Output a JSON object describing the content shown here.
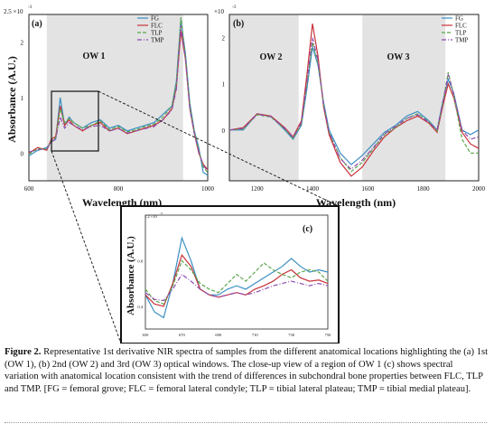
{
  "figure": {
    "panel_a": {
      "label": "(a)",
      "window_label": "OW 1",
      "y_exponent": "2.5 ×10",
      "y_exponent_power": "-3",
      "y_ticks": [
        "2",
        "1",
        "0"
      ],
      "x_ticks": [
        "600",
        "800",
        "1000"
      ],
      "x_label": "Wavelength (nm)",
      "y_label": "Absorbance (A.U.)"
    },
    "panel_b": {
      "label": "(b)",
      "window_labels": [
        "OW 2",
        "OW 3"
      ],
      "y_exponent": "×10",
      "y_exponent_power": "-3",
      "y_ticks": [
        "2",
        "1",
        "0"
      ],
      "x_ticks": [
        "1200",
        "1400",
        "1600",
        "1800",
        "2000"
      ],
      "x_label": "Wavelength (nm)"
    },
    "panel_c": {
      "label": "(c)",
      "y_exponent": "1.2 ×10",
      "y_exponent_power": "-3",
      "y_ticks": [
        "0.8",
        "0.4"
      ],
      "x_ticks": [
        "650",
        "670",
        "690",
        "710",
        "730",
        "750"
      ],
      "y_label": "Absorbance (A.U.)"
    },
    "legend": [
      {
        "name": "FG",
        "color": "#3b8fc4",
        "dash": "solid"
      },
      {
        "name": "FLC",
        "color": "#c8313a",
        "dash": "solid"
      },
      {
        "name": "TLP",
        "color": "#5aa54a",
        "dash": "dashed"
      },
      {
        "name": "TMP",
        "color": "#8e4bb0",
        "dash": "dashdot"
      }
    ]
  },
  "caption": {
    "fig_label": "Figure 2.",
    "text": "Representative 1st derivative NIR spectra of samples from the different anatomical locations highlighting the (a) 1st (OW 1), (b) 2nd (OW 2) and 3rd (OW 3) optical windows. The close-up view of a region of OW 1 (c) shows spectral variation with anatomical location consistent with the trend of differences in subchondral bone properties between FLC, TLP and TMP. [FG = femoral grove; FLC = femoral lateral condyle; TLP = tibial lateral plateau; TMP = tibial medial plateau]."
  },
  "chart_data": [
    {
      "type": "line",
      "panel": "(a)",
      "xlabel": "Wavelength (nm)",
      "ylabel": "Absorbance (A.U.)",
      "xlim": [
        600,
        1000
      ],
      "ylim": [
        -0.5,
        2.5
      ],
      "y_scale_factor": "1e-3",
      "shaded_windows": [
        {
          "label": "OW 1",
          "from": 640,
          "to": 945
        }
      ],
      "series": [
        {
          "name": "FG",
          "x": [
            600,
            620,
            640,
            650,
            660,
            670,
            680,
            690,
            700,
            720,
            740,
            760,
            780,
            800,
            820,
            840,
            860,
            880,
            900,
            920,
            930,
            940,
            950,
            960,
            970,
            980,
            990,
            1000
          ],
          "y": [
            -0.05,
            0.05,
            0.1,
            0.2,
            0.25,
            1.0,
            0.5,
            0.65,
            0.55,
            0.45,
            0.55,
            0.6,
            0.45,
            0.5,
            0.4,
            0.45,
            0.5,
            0.55,
            0.7,
            0.85,
            1.3,
            2.4,
            1.8,
            0.9,
            0.4,
            0.1,
            -0.35,
            -0.4
          ]
        },
        {
          "name": "FLC",
          "x": [
            600,
            620,
            640,
            650,
            660,
            670,
            680,
            690,
            700,
            720,
            740,
            760,
            780,
            800,
            820,
            840,
            860,
            880,
            900,
            920,
            930,
            940,
            950,
            960,
            970,
            980,
            990,
            1000
          ],
          "y": [
            0.0,
            0.1,
            0.05,
            0.25,
            0.3,
            0.85,
            0.5,
            0.6,
            0.5,
            0.4,
            0.5,
            0.55,
            0.4,
            0.45,
            0.35,
            0.4,
            0.45,
            0.5,
            0.6,
            0.8,
            1.2,
            2.2,
            1.7,
            0.8,
            0.35,
            0.0,
            -0.2,
            -0.3
          ]
        },
        {
          "name": "TLP",
          "x": [
            600,
            620,
            640,
            650,
            660,
            670,
            680,
            690,
            700,
            720,
            740,
            760,
            780,
            800,
            820,
            840,
            860,
            880,
            900,
            920,
            930,
            940,
            950,
            960,
            970,
            980,
            990,
            1000
          ],
          "y": [
            -0.02,
            0.08,
            0.07,
            0.22,
            0.28,
            0.8,
            0.55,
            0.62,
            0.55,
            0.45,
            0.5,
            0.58,
            0.42,
            0.48,
            0.38,
            0.42,
            0.48,
            0.52,
            0.65,
            0.85,
            1.25,
            2.45,
            1.75,
            0.85,
            0.38,
            0.05,
            -0.25,
            -0.35
          ]
        },
        {
          "name": "TMP",
          "x": [
            600,
            620,
            640,
            650,
            660,
            670,
            680,
            690,
            700,
            720,
            740,
            760,
            780,
            800,
            820,
            840,
            860,
            880,
            900,
            920,
            930,
            940,
            950,
            960,
            970,
            980,
            990,
            1000
          ],
          "y": [
            0.02,
            0.06,
            0.08,
            0.2,
            0.26,
            0.65,
            0.45,
            0.55,
            0.5,
            0.42,
            0.48,
            0.5,
            0.4,
            0.44,
            0.36,
            0.4,
            0.44,
            0.48,
            0.6,
            0.78,
            1.15,
            2.3,
            1.7,
            0.8,
            0.35,
            0.02,
            -0.22,
            -0.32
          ]
        }
      ]
    },
    {
      "type": "line",
      "panel": "(b)",
      "xlabel": "Wavelength (nm)",
      "xlim": [
        1100,
        2000
      ],
      "ylim": [
        -1.1,
        2.5
      ],
      "y_scale_factor": "1e-3",
      "shaded_windows": [
        {
          "label": "OW 2",
          "from": 1100,
          "to": 1350
        },
        {
          "label": "OW 3",
          "from": 1580,
          "to": 1880
        }
      ],
      "series": [
        {
          "name": "FG",
          "x": [
            1100,
            1150,
            1200,
            1250,
            1300,
            1330,
            1360,
            1380,
            1400,
            1420,
            1440,
            1460,
            1500,
            1540,
            1580,
            1620,
            1660,
            1700,
            1740,
            1780,
            1820,
            1850,
            1870,
            1890,
            1910,
            1940,
            1970,
            2000
          ],
          "y": [
            0.0,
            0.0,
            0.35,
            0.3,
            0.0,
            -0.2,
            0.1,
            0.9,
            1.8,
            1.4,
            0.6,
            0.0,
            -0.5,
            -0.75,
            -0.55,
            -0.3,
            -0.05,
            0.1,
            0.3,
            0.4,
            0.2,
            0.0,
            0.6,
            1.1,
            0.8,
            0.0,
            -0.1,
            0.0
          ]
        },
        {
          "name": "FLC",
          "x": [
            1100,
            1150,
            1200,
            1250,
            1300,
            1330,
            1360,
            1380,
            1400,
            1420,
            1440,
            1460,
            1500,
            1540,
            1580,
            1620,
            1660,
            1700,
            1740,
            1780,
            1820,
            1850,
            1870,
            1890,
            1910,
            1940,
            1970,
            2000
          ],
          "y": [
            0.0,
            0.05,
            0.35,
            0.3,
            0.05,
            -0.15,
            0.2,
            1.2,
            2.3,
            1.6,
            0.5,
            -0.1,
            -0.7,
            -1.0,
            -0.8,
            -0.45,
            -0.15,
            0.05,
            0.2,
            0.3,
            0.15,
            -0.05,
            0.5,
            1.0,
            0.7,
            -0.05,
            -0.3,
            -0.4
          ]
        },
        {
          "name": "TLP",
          "x": [
            1100,
            1150,
            1200,
            1250,
            1300,
            1330,
            1360,
            1380,
            1400,
            1420,
            1440,
            1460,
            1500,
            1540,
            1580,
            1620,
            1660,
            1700,
            1740,
            1780,
            1820,
            1850,
            1870,
            1890,
            1910,
            1940,
            1970,
            2000
          ],
          "y": [
            0.0,
            0.02,
            0.33,
            0.28,
            0.02,
            -0.18,
            0.12,
            1.0,
            1.9,
            1.45,
            0.55,
            -0.05,
            -0.6,
            -0.9,
            -0.7,
            -0.4,
            -0.1,
            0.05,
            0.25,
            0.35,
            0.18,
            -0.02,
            0.55,
            1.25,
            0.75,
            -0.2,
            -0.5,
            -0.5
          ]
        },
        {
          "name": "TMP",
          "x": [
            1100,
            1150,
            1200,
            1250,
            1300,
            1330,
            1360,
            1380,
            1400,
            1420,
            1440,
            1460,
            1500,
            1540,
            1580,
            1620,
            1660,
            1700,
            1740,
            1780,
            1820,
            1850,
            1870,
            1890,
            1910,
            1940,
            1970,
            2000
          ],
          "y": [
            0.0,
            0.03,
            0.34,
            0.29,
            0.03,
            -0.16,
            0.15,
            1.05,
            2.0,
            1.5,
            0.55,
            -0.05,
            -0.62,
            -0.85,
            -0.65,
            -0.38,
            -0.08,
            0.08,
            0.25,
            0.33,
            0.17,
            0.0,
            0.58,
            1.2,
            0.78,
            0.0,
            -0.2,
            -0.15
          ]
        }
      ]
    },
    {
      "type": "line",
      "panel": "(c)",
      "ylabel": "Absorbance (A.U.)",
      "xlim": [
        650,
        750
      ],
      "ylim": [
        0.2,
        1.2
      ],
      "y_scale_factor": "1e-3",
      "series": [
        {
          "name": "FG",
          "x": [
            650,
            655,
            660,
            665,
            670,
            675,
            680,
            685,
            690,
            695,
            700,
            705,
            710,
            715,
            720,
            725,
            730,
            735,
            740,
            745,
            750
          ],
          "y": [
            0.5,
            0.35,
            0.3,
            0.6,
            1.0,
            0.8,
            0.55,
            0.5,
            0.5,
            0.55,
            0.58,
            0.55,
            0.6,
            0.65,
            0.7,
            0.75,
            0.82,
            0.75,
            0.7,
            0.72,
            0.7
          ]
        },
        {
          "name": "FLC",
          "x": [
            650,
            655,
            660,
            665,
            670,
            675,
            680,
            685,
            690,
            695,
            700,
            705,
            710,
            715,
            720,
            725,
            730,
            735,
            740,
            745,
            750
          ],
          "y": [
            0.5,
            0.42,
            0.4,
            0.6,
            0.85,
            0.75,
            0.55,
            0.5,
            0.48,
            0.5,
            0.52,
            0.5,
            0.55,
            0.58,
            0.62,
            0.68,
            0.72,
            0.65,
            0.62,
            0.63,
            0.6
          ]
        },
        {
          "name": "TLP",
          "x": [
            650,
            655,
            660,
            665,
            670,
            675,
            680,
            685,
            690,
            695,
            700,
            705,
            710,
            715,
            720,
            725,
            730,
            735,
            740,
            745,
            750
          ],
          "y": [
            0.55,
            0.45,
            0.42,
            0.58,
            0.8,
            0.72,
            0.6,
            0.55,
            0.52,
            0.6,
            0.68,
            0.62,
            0.7,
            0.78,
            0.72,
            0.68,
            0.65,
            0.7,
            0.72,
            0.7,
            0.62
          ]
        },
        {
          "name": "TMP",
          "x": [
            650,
            655,
            660,
            665,
            670,
            675,
            680,
            685,
            690,
            695,
            700,
            705,
            710,
            715,
            720,
            725,
            730,
            735,
            740,
            745,
            750
          ],
          "y": [
            0.52,
            0.46,
            0.45,
            0.55,
            0.68,
            0.62,
            0.55,
            0.5,
            0.48,
            0.5,
            0.52,
            0.5,
            0.52,
            0.55,
            0.58,
            0.6,
            0.62,
            0.6,
            0.58,
            0.6,
            0.58
          ]
        }
      ]
    }
  ]
}
